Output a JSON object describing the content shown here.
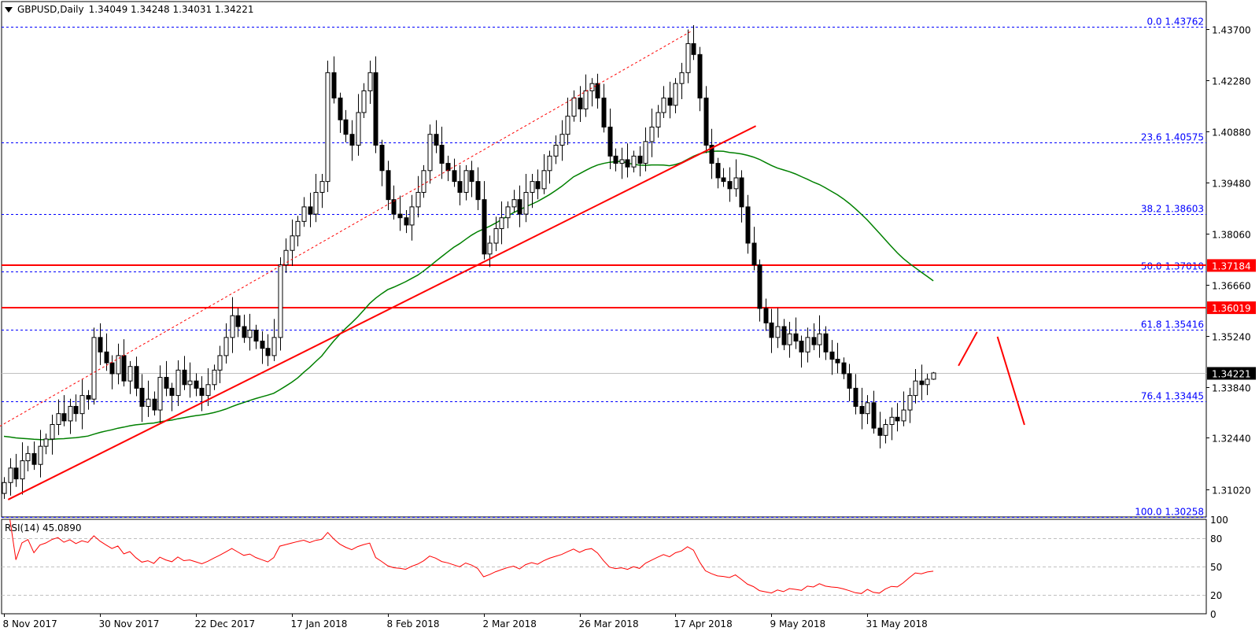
{
  "header": {
    "symbol": "GBPUSD,Daily",
    "ohlc": "1.34049 1.34248 1.34031 1.34221"
  },
  "rsi_header": {
    "label": "RSI(14) 45.0890"
  },
  "colors": {
    "fib": "#0000ff",
    "trend": "#ff0000",
    "ma": "#008000",
    "rsi": "#ff0000",
    "bull": "#ffffff",
    "bear": "#000000"
  },
  "chart_data": {
    "type": "candlestick",
    "title": "GBPUSD,Daily",
    "ylim": [
      1.30251,
      1.44503
    ],
    "y_ticks": [
      "1.43700",
      "1.42280",
      "1.40880",
      "1.39480",
      "1.38060",
      "1.36660",
      "1.35240",
      "1.33840",
      "1.32440",
      "1.31020"
    ],
    "x_ticks": [
      {
        "bar": 0,
        "label": "8 Nov 2017"
      },
      {
        "bar": 16,
        "label": "30 Nov 2017"
      },
      {
        "bar": 32,
        "label": "22 Dec 2017"
      },
      {
        "bar": 48,
        "label": "17 Jan 2018"
      },
      {
        "bar": 64,
        "label": "8 Feb 2018"
      },
      {
        "bar": 80,
        "label": "2 Mar 2018"
      },
      {
        "bar": 96,
        "label": "26 Mar 2018"
      },
      {
        "bar": 112,
        "label": "17 Apr 2018"
      },
      {
        "bar": 128,
        "label": "9 May 2018"
      },
      {
        "bar": 144,
        "label": "31 May 2018"
      }
    ],
    "closes": [
      1.312,
      1.316,
      1.313,
      1.318,
      1.32,
      1.317,
      1.322,
      1.324,
      1.328,
      1.331,
      1.329,
      1.333,
      1.331,
      1.336,
      1.335,
      1.352,
      1.348,
      1.345,
      1.342,
      1.347,
      1.34,
      1.344,
      1.338,
      1.333,
      1.335,
      1.332,
      1.341,
      1.338,
      1.336,
      1.343,
      1.339,
      1.34,
      1.338,
      1.336,
      1.339,
      1.343,
      1.347,
      1.352,
      1.358,
      1.355,
      1.352,
      1.354,
      1.351,
      1.349,
      1.347,
      1.352,
      1.372,
      1.376,
      1.38,
      1.384,
      1.388,
      1.386,
      1.392,
      1.395,
      1.425,
      1.418,
      1.412,
      1.408,
      1.405,
      1.414,
      1.42,
      1.425,
      1.405,
      1.398,
      1.39,
      1.386,
      1.385,
      1.383,
      1.388,
      1.392,
      1.398,
      1.408,
      1.405,
      1.4,
      1.398,
      1.395,
      1.392,
      1.398,
      1.395,
      1.39,
      1.375,
      1.378,
      1.382,
      1.385,
      1.388,
      1.39,
      1.386,
      1.392,
      1.395,
      1.393,
      1.398,
      1.402,
      1.405,
      1.408,
      1.413,
      1.418,
      1.415,
      1.42,
      1.422,
      1.418,
      1.41,
      1.402,
      1.4,
      1.401,
      1.399,
      1.402,
      1.4,
      1.406,
      1.41,
      1.414,
      1.418,
      1.416,
      1.422,
      1.425,
      1.433,
      1.43,
      1.418,
      1.405,
      1.4,
      1.396,
      1.395,
      1.393,
      1.396,
      1.388,
      1.378,
      1.372,
      1.36,
      1.356,
      1.352,
      1.355,
      1.35,
      1.353,
      1.351,
      1.348,
      1.352,
      1.35,
      1.353,
      1.348,
      1.346,
      1.345,
      1.342,
      1.338,
      1.333,
      1.331,
      1.334,
      1.327,
      1.325,
      1.328,
      1.33,
      1.329,
      1.332,
      1.336,
      1.34,
      1.339,
      1.34049,
      1.34221
    ],
    "last_bar": {
      "open": 1.34049,
      "high": 1.34248,
      "low": 1.34031,
      "close": 1.34221
    },
    "moving_average": {
      "type": "SMA",
      "period": 50
    },
    "fibonacci": [
      {
        "level": "0.0",
        "price": 1.43762,
        "label": "0.0 1.43762"
      },
      {
        "level": "23.6",
        "price": 1.40575,
        "label": "23.6 1.40575"
      },
      {
        "level": "38.2",
        "price": 1.38603,
        "label": "38.2 1.38603"
      },
      {
        "level": "50.0",
        "price": 1.3701,
        "label": "50.0 1.37010"
      },
      {
        "level": "61.8",
        "price": 1.35416,
        "label": "61.8 1.35416"
      },
      {
        "level": "76.4",
        "price": 1.33445,
        "label": "76.4 1.33445"
      },
      {
        "level": "100.0",
        "price": 1.30258,
        "label": "100.0 1.30258"
      }
    ],
    "horizontal_lines": [
      {
        "price": 1.37184,
        "label": "1.37184",
        "color": "#ff0000"
      },
      {
        "price": 1.36019,
        "label": "1.36019",
        "color": "#ff0000"
      }
    ],
    "current_price": {
      "price": 1.34221,
      "label": "1.34221"
    },
    "trendlines": [
      {
        "from": [
          0.7,
          1.3073
        ],
        "to": [
          125.4,
          1.4103
        ],
        "style": "solid"
      },
      {
        "from": [
          -0.7,
          1.3275
        ],
        "to": [
          114.8,
          1.4366
        ],
        "style": "dotted"
      },
      {
        "from": [
          159.2,
          1.3442
        ],
        "to": [
          162.3,
          1.3535
        ],
        "style": "solid"
      },
      {
        "from": [
          165.7,
          1.3522
        ],
        "to": [
          170.2,
          1.3279
        ],
        "style": "solid"
      }
    ],
    "rsi": {
      "period": 14,
      "last": 45.089,
      "ylim": [
        0,
        100
      ],
      "levels": [
        80,
        50,
        20
      ],
      "ticks": [
        "100",
        "80",
        "50",
        "20",
        "0"
      ]
    }
  }
}
